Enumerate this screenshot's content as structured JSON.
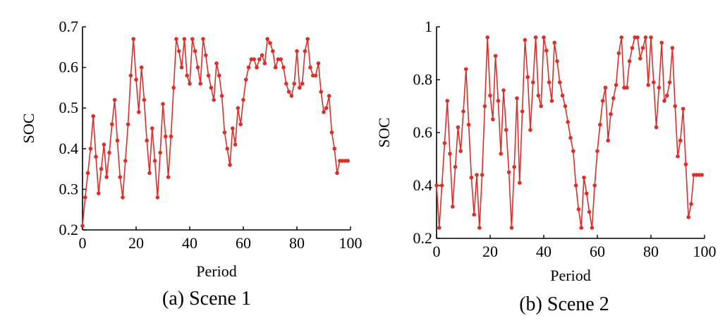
{
  "colors": {
    "series": "#d9302b",
    "axis": "#000000"
  },
  "chart_data": [
    {
      "type": "line",
      "title": "(a) Scene 1",
      "xlabel": "Period",
      "ylabel": "SOC",
      "xlim": [
        0,
        100
      ],
      "ylim": [
        0.2,
        0.7
      ],
      "xticks": [
        0,
        20,
        40,
        60,
        80,
        100
      ],
      "xtick_labels": [
        "0",
        "20",
        "40",
        "60",
        "80",
        "100"
      ],
      "yticks": [
        0.2,
        0.3,
        0.4,
        0.5,
        0.6,
        0.7
      ],
      "ytick_labels": [
        "0.2",
        "0.3",
        "0.4",
        "0.5",
        "0.6",
        "0.7"
      ],
      "grid": false,
      "legend": "none",
      "series": [
        {
          "x": [
            0,
            1,
            2,
            3,
            4,
            5,
            6,
            7,
            8,
            9,
            10,
            11,
            12,
            13,
            14,
            15,
            16,
            17,
            18,
            19,
            20,
            21,
            22,
            23,
            24,
            25,
            26,
            27,
            28,
            29,
            30,
            31,
            32,
            33,
            34,
            35,
            36,
            37,
            38,
            39,
            40,
            41,
            42,
            43,
            44,
            45,
            46,
            47,
            48,
            49,
            50,
            51,
            52,
            53,
            54,
            55,
            56,
            57,
            58,
            59,
            60,
            61,
            62,
            63,
            64,
            65,
            66,
            67,
            68,
            69,
            70,
            71,
            72,
            73,
            74,
            75,
            76,
            77,
            78,
            79,
            80,
            81,
            82,
            83,
            84,
            85,
            86,
            87,
            88,
            89,
            90,
            91,
            92,
            93,
            94,
            95,
            96,
            97,
            98,
            99
          ],
          "values": [
            0.21,
            0.28,
            0.34,
            0.4,
            0.48,
            0.38,
            0.29,
            0.35,
            0.41,
            0.33,
            0.39,
            0.46,
            0.52,
            0.42,
            0.33,
            0.28,
            0.37,
            0.46,
            0.58,
            0.67,
            0.57,
            0.49,
            0.6,
            0.52,
            0.42,
            0.34,
            0.45,
            0.37,
            0.28,
            0.39,
            0.51,
            0.43,
            0.33,
            0.43,
            0.55,
            0.67,
            0.64,
            0.6,
            0.67,
            0.58,
            0.56,
            0.67,
            0.64,
            0.6,
            0.56,
            0.67,
            0.63,
            0.58,
            0.55,
            0.52,
            0.61,
            0.58,
            0.53,
            0.44,
            0.4,
            0.36,
            0.45,
            0.41,
            0.5,
            0.46,
            0.52,
            0.57,
            0.6,
            0.62,
            0.62,
            0.6,
            0.62,
            0.63,
            0.61,
            0.67,
            0.66,
            0.64,
            0.6,
            0.62,
            0.62,
            0.6,
            0.56,
            0.54,
            0.53,
            0.56,
            0.64,
            0.55,
            0.56,
            0.64,
            0.67,
            0.6,
            0.58,
            0.58,
            0.61,
            0.54,
            0.49,
            0.5,
            0.53,
            0.44,
            0.4,
            0.34,
            0.37,
            0.37,
            0.37,
            0.37
          ]
        }
      ]
    },
    {
      "type": "line",
      "title": "(b) Scene 2",
      "xlabel": "Period",
      "ylabel": "SOC",
      "xlim": [
        0,
        100
      ],
      "ylim": [
        0.2,
        1.0
      ],
      "xticks": [
        0,
        20,
        40,
        60,
        80,
        100
      ],
      "xtick_labels": [
        "0",
        "20",
        "40",
        "60",
        "80",
        "100"
      ],
      "yticks": [
        0.2,
        0.4,
        0.6,
        0.8,
        1.0
      ],
      "ytick_labels": [
        "0.2",
        "0.4",
        "0.6",
        "0.8",
        "1"
      ],
      "grid": false,
      "legend": "none",
      "series": [
        {
          "x": [
            0,
            1,
            2,
            3,
            4,
            5,
            6,
            7,
            8,
            9,
            10,
            11,
            12,
            13,
            14,
            15,
            16,
            17,
            18,
            19,
            20,
            21,
            22,
            23,
            24,
            25,
            26,
            27,
            28,
            29,
            30,
            31,
            32,
            33,
            34,
            35,
            36,
            37,
            38,
            39,
            40,
            41,
            42,
            43,
            44,
            45,
            46,
            47,
            48,
            49,
            50,
            51,
            52,
            53,
            54,
            55,
            56,
            57,
            58,
            59,
            60,
            61,
            62,
            63,
            64,
            65,
            66,
            67,
            68,
            69,
            70,
            71,
            72,
            73,
            74,
            75,
            76,
            77,
            78,
            79,
            80,
            81,
            82,
            83,
            84,
            85,
            86,
            87,
            88,
            89,
            90,
            91,
            92,
            93,
            94,
            95,
            96,
            97,
            98,
            99
          ],
          "values": [
            0.4,
            0.24,
            0.4,
            0.56,
            0.72,
            0.52,
            0.32,
            0.47,
            0.62,
            0.53,
            0.68,
            0.84,
            0.63,
            0.43,
            0.29,
            0.44,
            0.24,
            0.44,
            0.7,
            0.96,
            0.74,
            0.65,
            0.89,
            0.72,
            0.52,
            0.76,
            0.61,
            0.45,
            0.24,
            0.47,
            0.73,
            0.41,
            0.68,
            0.95,
            0.81,
            0.61,
            0.79,
            0.96,
            0.74,
            0.7,
            0.96,
            0.91,
            0.79,
            0.72,
            0.94,
            0.87,
            0.79,
            0.74,
            0.7,
            0.64,
            0.58,
            0.53,
            0.4,
            0.31,
            0.24,
            0.43,
            0.37,
            0.3,
            0.24,
            0.4,
            0.53,
            0.63,
            0.72,
            0.77,
            0.57,
            0.67,
            0.73,
            0.78,
            0.9,
            0.96,
            0.77,
            0.77,
            0.87,
            0.92,
            0.96,
            0.96,
            0.88,
            0.92,
            0.96,
            0.78,
            0.96,
            0.79,
            0.62,
            0.77,
            0.94,
            0.72,
            0.74,
            0.79,
            0.92,
            0.7,
            0.51,
            0.57,
            0.69,
            0.48,
            0.28,
            0.33,
            0.44,
            0.44,
            0.44,
            0.44
          ]
        }
      ]
    }
  ]
}
